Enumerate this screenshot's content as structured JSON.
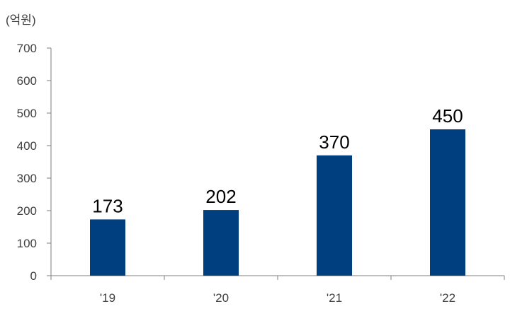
{
  "chart_data": {
    "type": "bar",
    "unit_label": "(억원)",
    "categories": [
      "'19",
      "'20",
      "'21",
      "'22"
    ],
    "values": [
      173,
      202,
      370,
      450
    ],
    "data_labels": [
      "173",
      "202",
      "370",
      "450"
    ],
    "ylim": [
      0,
      700
    ],
    "yticks": [
      0,
      100,
      200,
      300,
      400,
      500,
      600,
      700
    ],
    "grid": false,
    "legend": "none",
    "bar_color": "#003F7F",
    "axis_color": "#7F7F7F"
  }
}
